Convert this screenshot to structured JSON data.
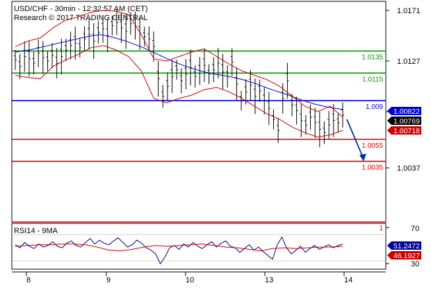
{
  "header": {
    "symbol_line": "USD/CHF - 30min - 12:32:57 AM (CET)",
    "research_line": "Research © 2017 TRADING CENTRAL"
  },
  "chart_data": [
    {
      "type": "line",
      "panel": "price",
      "y_ticks": [
        "1.0171",
        "1.0127",
        "1.0082",
        "1.0037"
      ],
      "ylim": [
        0.998,
        1.018
      ],
      "x_ticks": [
        "8",
        "9",
        "10",
        "13",
        "14"
      ],
      "levels": [
        {
          "value": 1.0135,
          "label": "1.0135",
          "color": "#009900"
        },
        {
          "value": 1.0115,
          "label": "1.0115",
          "color": "#009900"
        },
        {
          "value": 1.009,
          "label": "1.009",
          "color": "#0000dd"
        },
        {
          "value": 1.0055,
          "label": "1.0055",
          "color": "#dd0000"
        },
        {
          "value": 1.0035,
          "label": "1.0035",
          "color": "#dd0000"
        },
        {
          "value": 0.998,
          "label": "1",
          "color": "#dd0000"
        }
      ],
      "price_tags": [
        {
          "value": 1.00822,
          "label": "1.00822",
          "bg": "#0000cc"
        },
        {
          "value": 1.00769,
          "label": "1.00769",
          "bg": "#000000"
        },
        {
          "value": 1.00718,
          "label": "1.00718",
          "bg": "#cc0000"
        }
      ],
      "series": [
        {
          "kind": "close",
          "color": "#000000",
          "values": [
            1.0127,
            1.0121,
            1.013,
            1.0128,
            1.0124,
            1.0133,
            1.0129,
            1.0126,
            1.0131,
            1.0124,
            1.013,
            1.0136,
            1.014,
            1.0142,
            1.0138,
            1.0146,
            1.015,
            1.0144,
            1.0152,
            1.0155,
            1.0149,
            1.0158,
            1.0161,
            1.0156,
            1.0153,
            1.016,
            1.0158,
            1.0151,
            1.0148,
            1.0146,
            1.0139,
            1.011,
            1.0094,
            1.0103,
            1.0112,
            1.0118,
            1.0108,
            1.0114,
            1.012,
            1.0112,
            1.0117,
            1.0122,
            1.0114,
            1.0118,
            1.0124,
            1.0116,
            1.0112,
            1.0125,
            1.0105,
            1.009,
            1.0098,
            1.0104,
            1.0094,
            1.0099,
            1.009,
            1.0083,
            1.0073,
            1.0063,
            1.0092,
            1.0108,
            1.0086,
            1.0081,
            1.0072,
            1.0068,
            1.0075,
            1.007,
            1.0064,
            1.0061,
            1.0068,
            1.0072,
            1.007,
            1.0077
          ]
        },
        {
          "kind": "moving-average",
          "color": "#0000cc",
          "values": [
            1.0134,
            1.0136,
            1.0139,
            1.0142,
            1.0145,
            1.0148,
            1.015,
            1.0147,
            1.0143,
            1.0138,
            1.0132,
            1.0126,
            1.0121,
            1.0117,
            1.0114,
            1.0112,
            1.0109,
            1.0105,
            1.01,
            1.0096,
            1.0091,
            1.0087,
            1.0084,
            1.0082
          ]
        },
        {
          "kind": "upper-band",
          "color": "#cc0000",
          "values": [
            1.0139,
            1.0144,
            1.0147,
            1.0156,
            1.0163,
            1.0166,
            1.017,
            1.0172,
            1.0171,
            1.0168,
            1.015,
            1.0128,
            1.0126,
            1.013,
            1.0134,
            1.0137,
            1.013,
            1.0123,
            1.0117,
            1.0113,
            1.0109,
            1.0103,
            1.0094,
            1.0085,
            1.008,
            1.0085,
            1.0075
          ]
        },
        {
          "kind": "lower-band",
          "color": "#cc0000",
          "values": [
            1.0113,
            1.0111,
            1.011,
            1.0121,
            1.0127,
            1.0132,
            1.0138,
            1.014,
            1.0136,
            1.013,
            1.0117,
            1.0092,
            1.0088,
            1.0092,
            1.0095,
            1.01,
            1.0102,
            1.0098,
            1.0092,
            1.0085,
            1.0078,
            1.0073,
            1.0066,
            1.0061,
            1.0057,
            1.0059,
            1.0063
          ]
        }
      ],
      "forecast": {
        "from": 1.0073,
        "to": 1.0035,
        "color": "#003399"
      }
    },
    {
      "type": "line",
      "panel": "rsi",
      "title": "RSI14 - 9MA",
      "y_ticks": [
        "70",
        "30"
      ],
      "ylim": [
        20,
        80
      ],
      "price_tags": [
        {
          "value": 51.2472,
          "label": "51.2472",
          "bg": "#000099"
        },
        {
          "value": 46.1927,
          "label": "46.1927",
          "bg": "#cc0000"
        }
      ],
      "series": [
        {
          "kind": "rsi",
          "color": "#000080",
          "values": [
            52,
            48,
            55,
            50,
            47,
            53,
            49,
            51,
            56,
            50,
            48,
            54,
            57,
            51,
            49,
            55,
            60,
            53,
            58,
            54,
            52,
            57,
            61,
            55,
            49,
            52,
            58,
            54,
            48,
            45,
            40,
            27,
            36,
            48,
            51,
            46,
            53,
            49,
            55,
            50,
            47,
            52,
            56,
            49,
            54,
            57,
            50,
            48,
            42,
            47,
            52,
            45,
            49,
            43,
            38,
            33,
            52,
            62,
            48,
            40,
            45,
            50,
            42,
            47,
            51,
            46,
            49,
            52,
            48,
            51,
            53
          ]
        },
        {
          "kind": "moving-average",
          "color": "#cc0000",
          "values": [
            50,
            51,
            52,
            52,
            53,
            53,
            52,
            49,
            45,
            44,
            46,
            49,
            51,
            50,
            51,
            52,
            53,
            51,
            49,
            48,
            46,
            44,
            47,
            48,
            47,
            48,
            49,
            49,
            50
          ]
        }
      ]
    }
  ]
}
